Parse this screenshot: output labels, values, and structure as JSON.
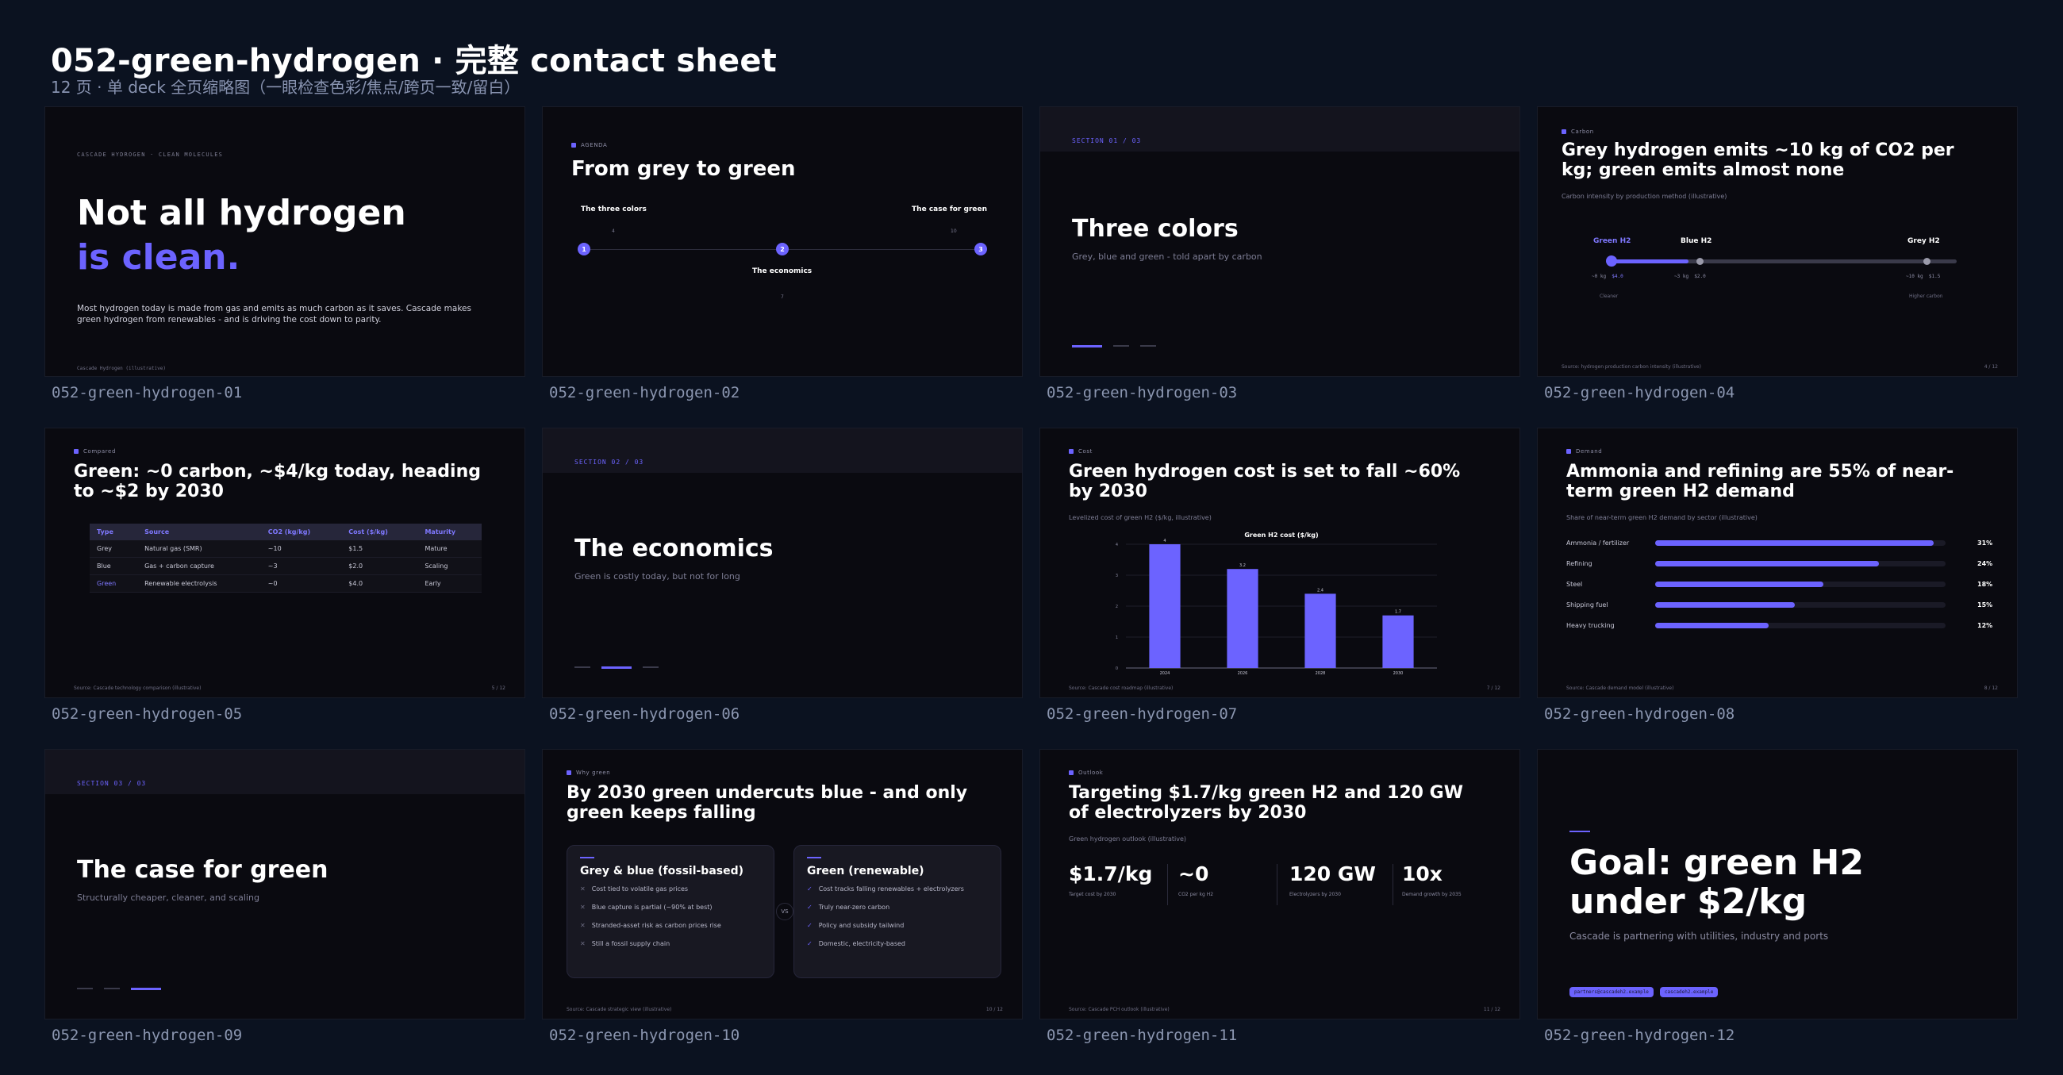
{
  "header": {
    "title": "052-green-hydrogen · 完整 contact sheet",
    "subtitle": "12 页 · 单 deck 全页缩略图（一眼检查色彩/焦点/跨页一致/留白）"
  },
  "captions": [
    "052-green-hydrogen-01",
    "052-green-hydrogen-02",
    "052-green-hydrogen-03",
    "052-green-hydrogen-04",
    "052-green-hydrogen-05",
    "052-green-hydrogen-06",
    "052-green-hydrogen-07",
    "052-green-hydrogen-08",
    "052-green-hydrogen-09",
    "052-green-hydrogen-10",
    "052-green-hydrogen-11",
    "052-green-hydrogen-12"
  ],
  "s1": {
    "eyebrow": "CASCADE HYDROGEN · CLEAN MOLECULES",
    "title_line1": "Not all hydrogen",
    "title_line2": "is clean.",
    "body": "Most hydrogen today is made from gas and emits as much carbon as it saves. Cascade makes green hydrogen from renewables - and is driving the cost down to parity.",
    "footer": "Cascade Hydrogen (illustrative)"
  },
  "s2": {
    "eyebrow": "AGENDA",
    "title": "From grey to green",
    "items": [
      {
        "num": "1",
        "label": "The three colors",
        "page": "4"
      },
      {
        "num": "2",
        "label": "The economics",
        "page": "7"
      },
      {
        "num": "3",
        "label": "The case for green",
        "page": "10"
      }
    ]
  },
  "s3": {
    "tag": "SECTION 01 / 03",
    "title": "Three colors",
    "sub": "Grey, blue and green - told apart by carbon"
  },
  "s4": {
    "eyebrow": "Carbon",
    "title": "Grey hydrogen emits ~10 kg of CO2 per kg; green emits almost none",
    "sub": "Carbon intensity by production method (illustrative)",
    "points": [
      {
        "name": "Green H2",
        "value": "~0 kg",
        "cost": "$4.0"
      },
      {
        "name": "Blue H2",
        "value": "~3 kg",
        "cost": "$2.0"
      },
      {
        "name": "Grey H2",
        "value": "~10 kg",
        "cost": "$1.5"
      }
    ],
    "left_label": "Cleaner",
    "right_label": "Higher carbon",
    "footer": "Source: hydrogen production carbon intensity (illustrative)",
    "page": "4 / 12"
  },
  "s5": {
    "eyebrow": "Compared",
    "title": "Green: ~0 carbon, ~$4/kg today, heading to ~$2 by 2030",
    "headers": [
      "Type",
      "Source",
      "CO2 (kg/kg)",
      "Cost ($/kg)",
      "Maturity"
    ],
    "rows": [
      [
        "Grey",
        "Natural gas (SMR)",
        "~10",
        "$1.5",
        "Mature"
      ],
      [
        "Blue",
        "Gas + carbon capture",
        "~3",
        "$2.0",
        "Scaling"
      ],
      [
        "Green",
        "Renewable electrolysis",
        "~0",
        "$4.0",
        "Early"
      ]
    ],
    "footer": "Source: Cascade technology comparison (illustrative)",
    "page": "5 / 12"
  },
  "s6": {
    "tag": "SECTION 02 / 03",
    "title": "The economics",
    "sub": "Green is costly today, but not for long"
  },
  "s7": {
    "eyebrow": "Cost",
    "title": "Green hydrogen cost is set to fall ~60% by 2030",
    "sub": "Levelized cost of green H2 ($/kg, illustrative)",
    "footer": "Source: Cascade cost roadmap (illustrative)",
    "page": "7 / 12"
  },
  "chart_data": {
    "type": "bar",
    "title": "Green H2 cost ($/kg)",
    "categories": [
      "2024",
      "2026",
      "2028",
      "2030"
    ],
    "values": [
      4,
      3.2,
      2.4,
      1.7
    ],
    "data_labels": [
      "4",
      "3.2",
      "2.4",
      "1.7"
    ],
    "ylim": [
      0,
      4
    ],
    "yticks": [
      "0",
      "1",
      "2",
      "3",
      "4"
    ],
    "color": "#6c63ff",
    "grid": true
  },
  "s8": {
    "eyebrow": "Demand",
    "title": "Ammonia and refining are 55% of near-term green H2 demand",
    "sub": "Share of near-term green H2 demand by sector (illustrative)",
    "bars": [
      {
        "label": "Ammonia / fertilizer",
        "pct": 31,
        "text": "31%"
      },
      {
        "label": "Refining",
        "pct": 24,
        "text": "24%"
      },
      {
        "label": "Steel",
        "pct": 18,
        "text": "18%"
      },
      {
        "label": "Shipping fuel",
        "pct": 15,
        "text": "15%"
      },
      {
        "label": "Heavy trucking",
        "pct": 12,
        "text": "12%"
      }
    ],
    "footer": "Source: Cascade demand model (illustrative)",
    "page": "8 / 12"
  },
  "s9": {
    "tag": "SECTION 03 / 03",
    "title": "The case for green",
    "sub": "Structurally cheaper, cleaner, and scaling"
  },
  "s10": {
    "eyebrow": "Why green",
    "title": "By 2030 green undercuts blue - and only green keeps falling",
    "left": {
      "title": "Grey & blue (fossil-based)",
      "items": [
        "Cost tied to volatile gas prices",
        "Blue capture is partial (~90% at best)",
        "Stranded-asset risk as carbon prices rise",
        "Still a fossil supply chain"
      ]
    },
    "vs": "VS",
    "right": {
      "title": "Green (renewable)",
      "items": [
        "Cost tracks falling renewables + electrolyzers",
        "Truly near-zero carbon",
        "Policy and subsidy tailwind",
        "Domestic, electricity-based"
      ]
    },
    "footer": "Source: Cascade strategic view (illustrative)",
    "page": "10 / 12"
  },
  "s11": {
    "eyebrow": "Outlook",
    "title": "Targeting $1.7/kg green H2 and 120 GW of electrolyzers by 2030",
    "sub": "Green hydrogen outlook (illustrative)",
    "stats": [
      {
        "value": "$1.7/kg",
        "label": "Target cost by 2030"
      },
      {
        "value": "~0",
        "label": "CO2 per kg H2"
      },
      {
        "value": "120 GW",
        "label": "Electrolyzers by 2030"
      },
      {
        "value": "10x",
        "label": "Demand growth by 2035"
      }
    ],
    "footer": "Source: Cascade PCH outlook (illustrative)",
    "page": "11 / 12"
  },
  "s12": {
    "title": "Goal: green H2 under $2/kg",
    "sub": "Cascade is partnering with utilities, industry and ports",
    "pills": [
      "partners@cascadeh2.example",
      "cascadeh2.example"
    ]
  }
}
